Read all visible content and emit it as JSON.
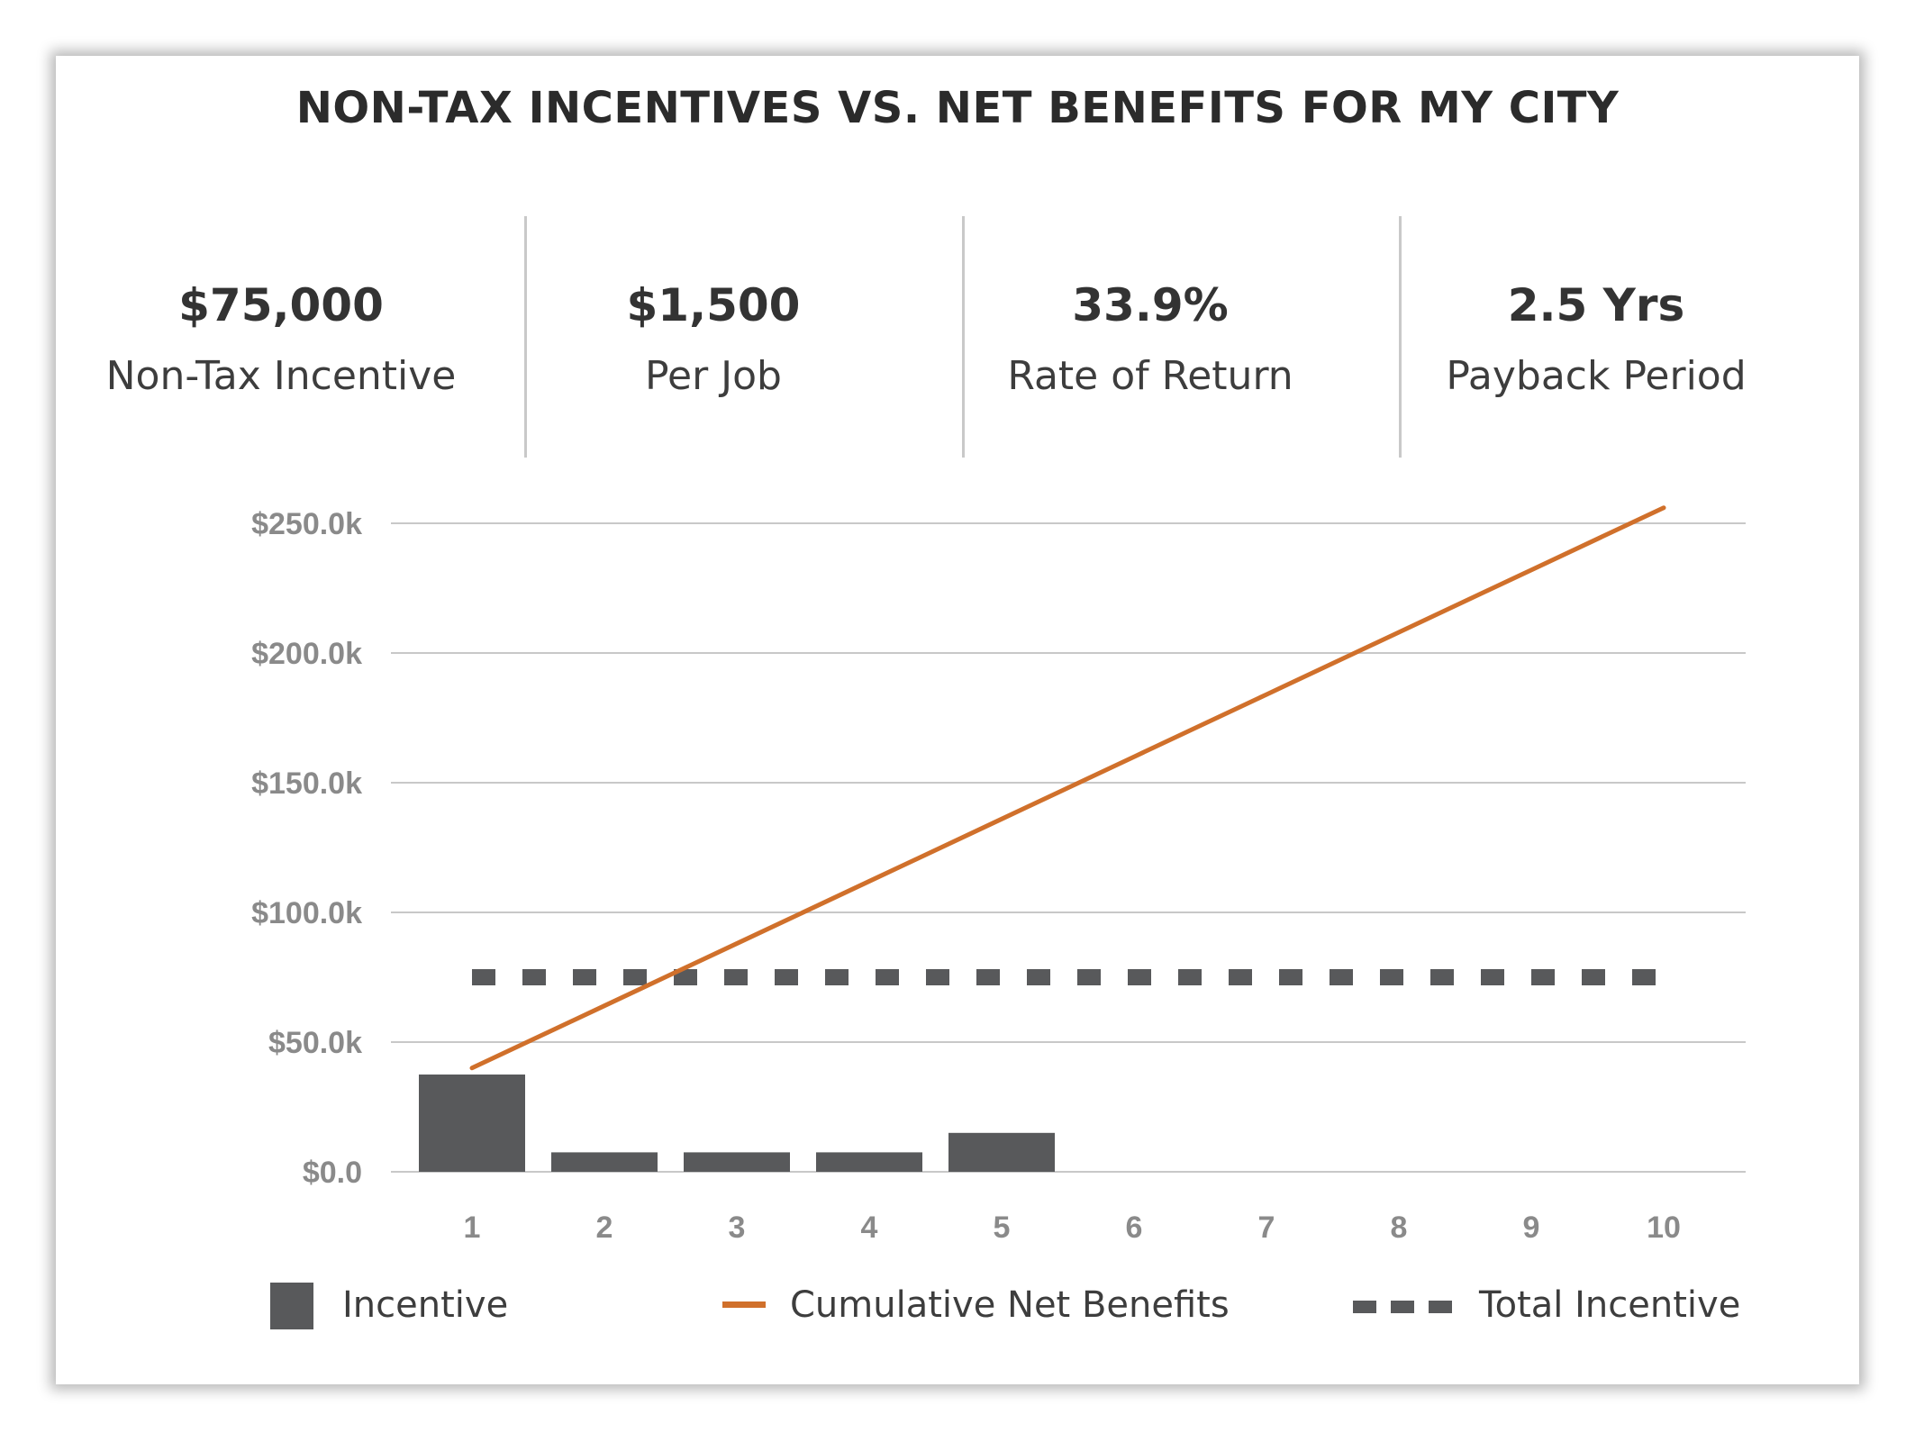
{
  "header": {
    "title": "NON-TAX INCENTIVES VS. NET BENEFITS FOR MY CITY"
  },
  "stats": [
    {
      "value": "$75,000",
      "label": "Non-Tax Incentive"
    },
    {
      "value": "$1,500",
      "label": "Per Job"
    },
    {
      "value": "33.9%",
      "label": "Rate of Return"
    },
    {
      "value": "2.5 Yrs",
      "label": "Payback Period"
    }
  ],
  "colors": {
    "incentive": "#58595b",
    "cumulative": "#d0702b",
    "total": "#58595b",
    "grid": "#c8c8c8",
    "tick_text": "#8a8a8a"
  },
  "chart_data": {
    "type": "bar",
    "categories": [
      "1",
      "2",
      "3",
      "4",
      "5",
      "6",
      "7",
      "8",
      "9",
      "10"
    ],
    "y_ticks": [
      "$0.0",
      "$50.0k",
      "$100.0k",
      "$150.0k",
      "$200.0k",
      "$250.0k"
    ],
    "ylim": [
      0,
      250000
    ],
    "grid": true,
    "legend_position": "bottom",
    "series": [
      {
        "name": "Incentive",
        "type": "bar",
        "values": [
          37500,
          7500,
          7500,
          7500,
          15000,
          0,
          0,
          0,
          0,
          0
        ]
      },
      {
        "name": "Cumulative Net Benefits",
        "type": "line",
        "values": [
          40000,
          64000,
          88000,
          112000,
          136000,
          160000,
          184000,
          208000,
          232000,
          256000
        ]
      },
      {
        "name": "Total Incentive",
        "type": "line-dashed",
        "values": [
          75000,
          75000,
          75000,
          75000,
          75000,
          75000,
          75000,
          75000,
          75000,
          75000
        ]
      }
    ]
  }
}
